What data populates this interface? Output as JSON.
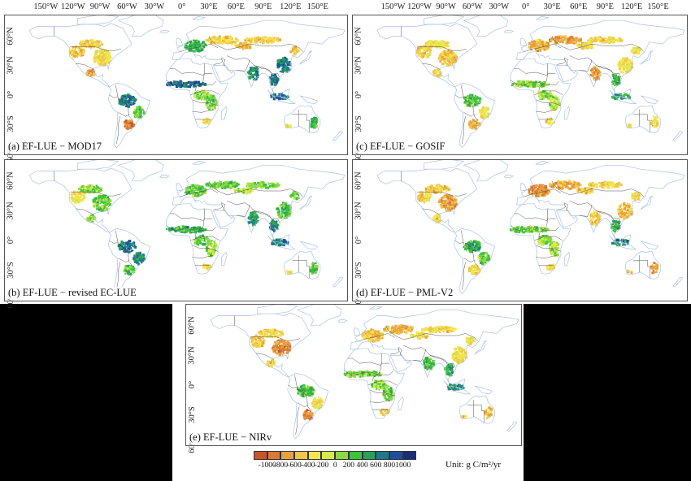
{
  "longitude_ticks": [
    "150°W",
    "120°W",
    "90°W",
    "60°W",
    "30°W",
    "0°",
    "30°E",
    "60°E",
    "90°E",
    "120°E",
    "150°E"
  ],
  "latitude_ticks": [
    "60°N",
    "30°N",
    "0°",
    "30°S",
    "60°S"
  ],
  "panels": [
    {
      "id": "a",
      "caption": "(a) EF-LUE − MOD17",
      "show_lon_axis": true
    },
    {
      "id": "c",
      "caption": "(c) EF-LUE − GOSIF",
      "show_lon_axis": true
    },
    {
      "id": "b",
      "caption": "(b) EF-LUE − revised EC-LUE",
      "show_lon_axis": false
    },
    {
      "id": "d",
      "caption": "(d) EF-LUE − PML-V2",
      "show_lon_axis": false
    },
    {
      "id": "e",
      "caption": "(e) EF-LUE − NIRv",
      "show_lon_axis": false
    }
  ],
  "legend": {
    "tick_labels": [
      "-1000",
      "-800",
      "-600",
      "-400",
      "-200",
      "0",
      "200",
      "400",
      "600",
      "800",
      "1000"
    ],
    "unit_label": "Unit: g C/m²/yr",
    "colors": [
      "#c8562a",
      "#d97a35",
      "#e8a040",
      "#f0c64a",
      "#f5e64e",
      "#d6ea4c",
      "#8fd844",
      "#3cc43c",
      "#2aa05a",
      "#1e7a8a",
      "#1e4f9e",
      "#1a2f7a"
    ]
  },
  "colors": {
    "coast": "#a9c2e6",
    "border": "#444444",
    "neg_strong": "#c8562a",
    "neg": "#e8a040",
    "neutral": "#f5e64e",
    "pos": "#3cc43c",
    "pos_strong": "#1e4f9e"
  }
}
